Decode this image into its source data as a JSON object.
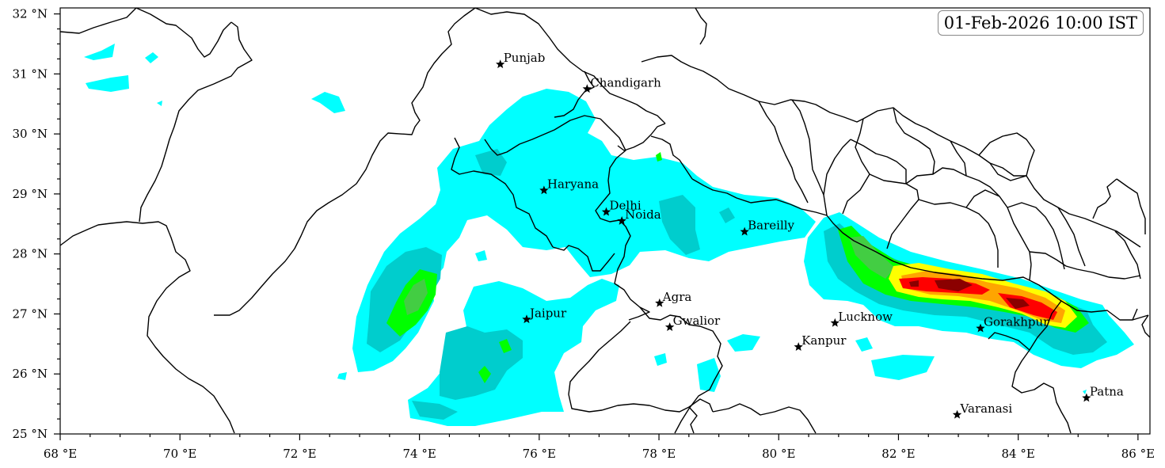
{
  "timestamp": "01-Feb-2026 10:00 IST",
  "axes": {
    "x_ticks": [
      "68 °E",
      "70 °E",
      "72 °E",
      "74 °E",
      "76 °E",
      "78 °E",
      "80 °E",
      "82 °E",
      "84 °E",
      "86 °E"
    ],
    "y_ticks": [
      "25 °N",
      "26 °N",
      "27 °N",
      "28 °N",
      "29 °N",
      "30 °N",
      "31 °N",
      "32 °N"
    ],
    "lon_range": [
      68,
      86.2
    ],
    "lat_range": [
      25,
      32.1
    ]
  },
  "cities": [
    {
      "name": "Punjab",
      "lon": 75.35,
      "lat": 31.16
    },
    {
      "name": "Chandigarh",
      "lon": 76.8,
      "lat": 30.75
    },
    {
      "name": "Haryana",
      "lon": 76.08,
      "lat": 29.06
    },
    {
      "name": "Delhi",
      "lon": 77.12,
      "lat": 28.7
    },
    {
      "name": "Noida",
      "lon": 77.38,
      "lat": 28.55
    },
    {
      "name": "Bareilly",
      "lon": 79.43,
      "lat": 28.37
    },
    {
      "name": "Agra",
      "lon": 78.01,
      "lat": 27.18
    },
    {
      "name": "Gwalior",
      "lon": 78.18,
      "lat": 26.78
    },
    {
      "name": "Jaipur",
      "lon": 75.79,
      "lat": 26.91
    },
    {
      "name": "Lucknow",
      "lon": 80.94,
      "lat": 26.85
    },
    {
      "name": "Kanpur",
      "lon": 80.33,
      "lat": 26.45
    },
    {
      "name": "Gorakhpur",
      "lon": 83.37,
      "lat": 26.76
    },
    {
      "name": "Varanasi",
      "lon": 82.98,
      "lat": 25.32
    },
    {
      "name": "Patna",
      "lon": 85.14,
      "lat": 25.6
    }
  ],
  "colors": {
    "level1": "#00ffff",
    "level2": "#00cdcd",
    "level3": "#00ff00",
    "level4": "#43cd43",
    "level5": "#ffff00",
    "level6": "#ffa500",
    "level7": "#ff0000",
    "level8": "#8b0000",
    "boundary": "#000000"
  }
}
